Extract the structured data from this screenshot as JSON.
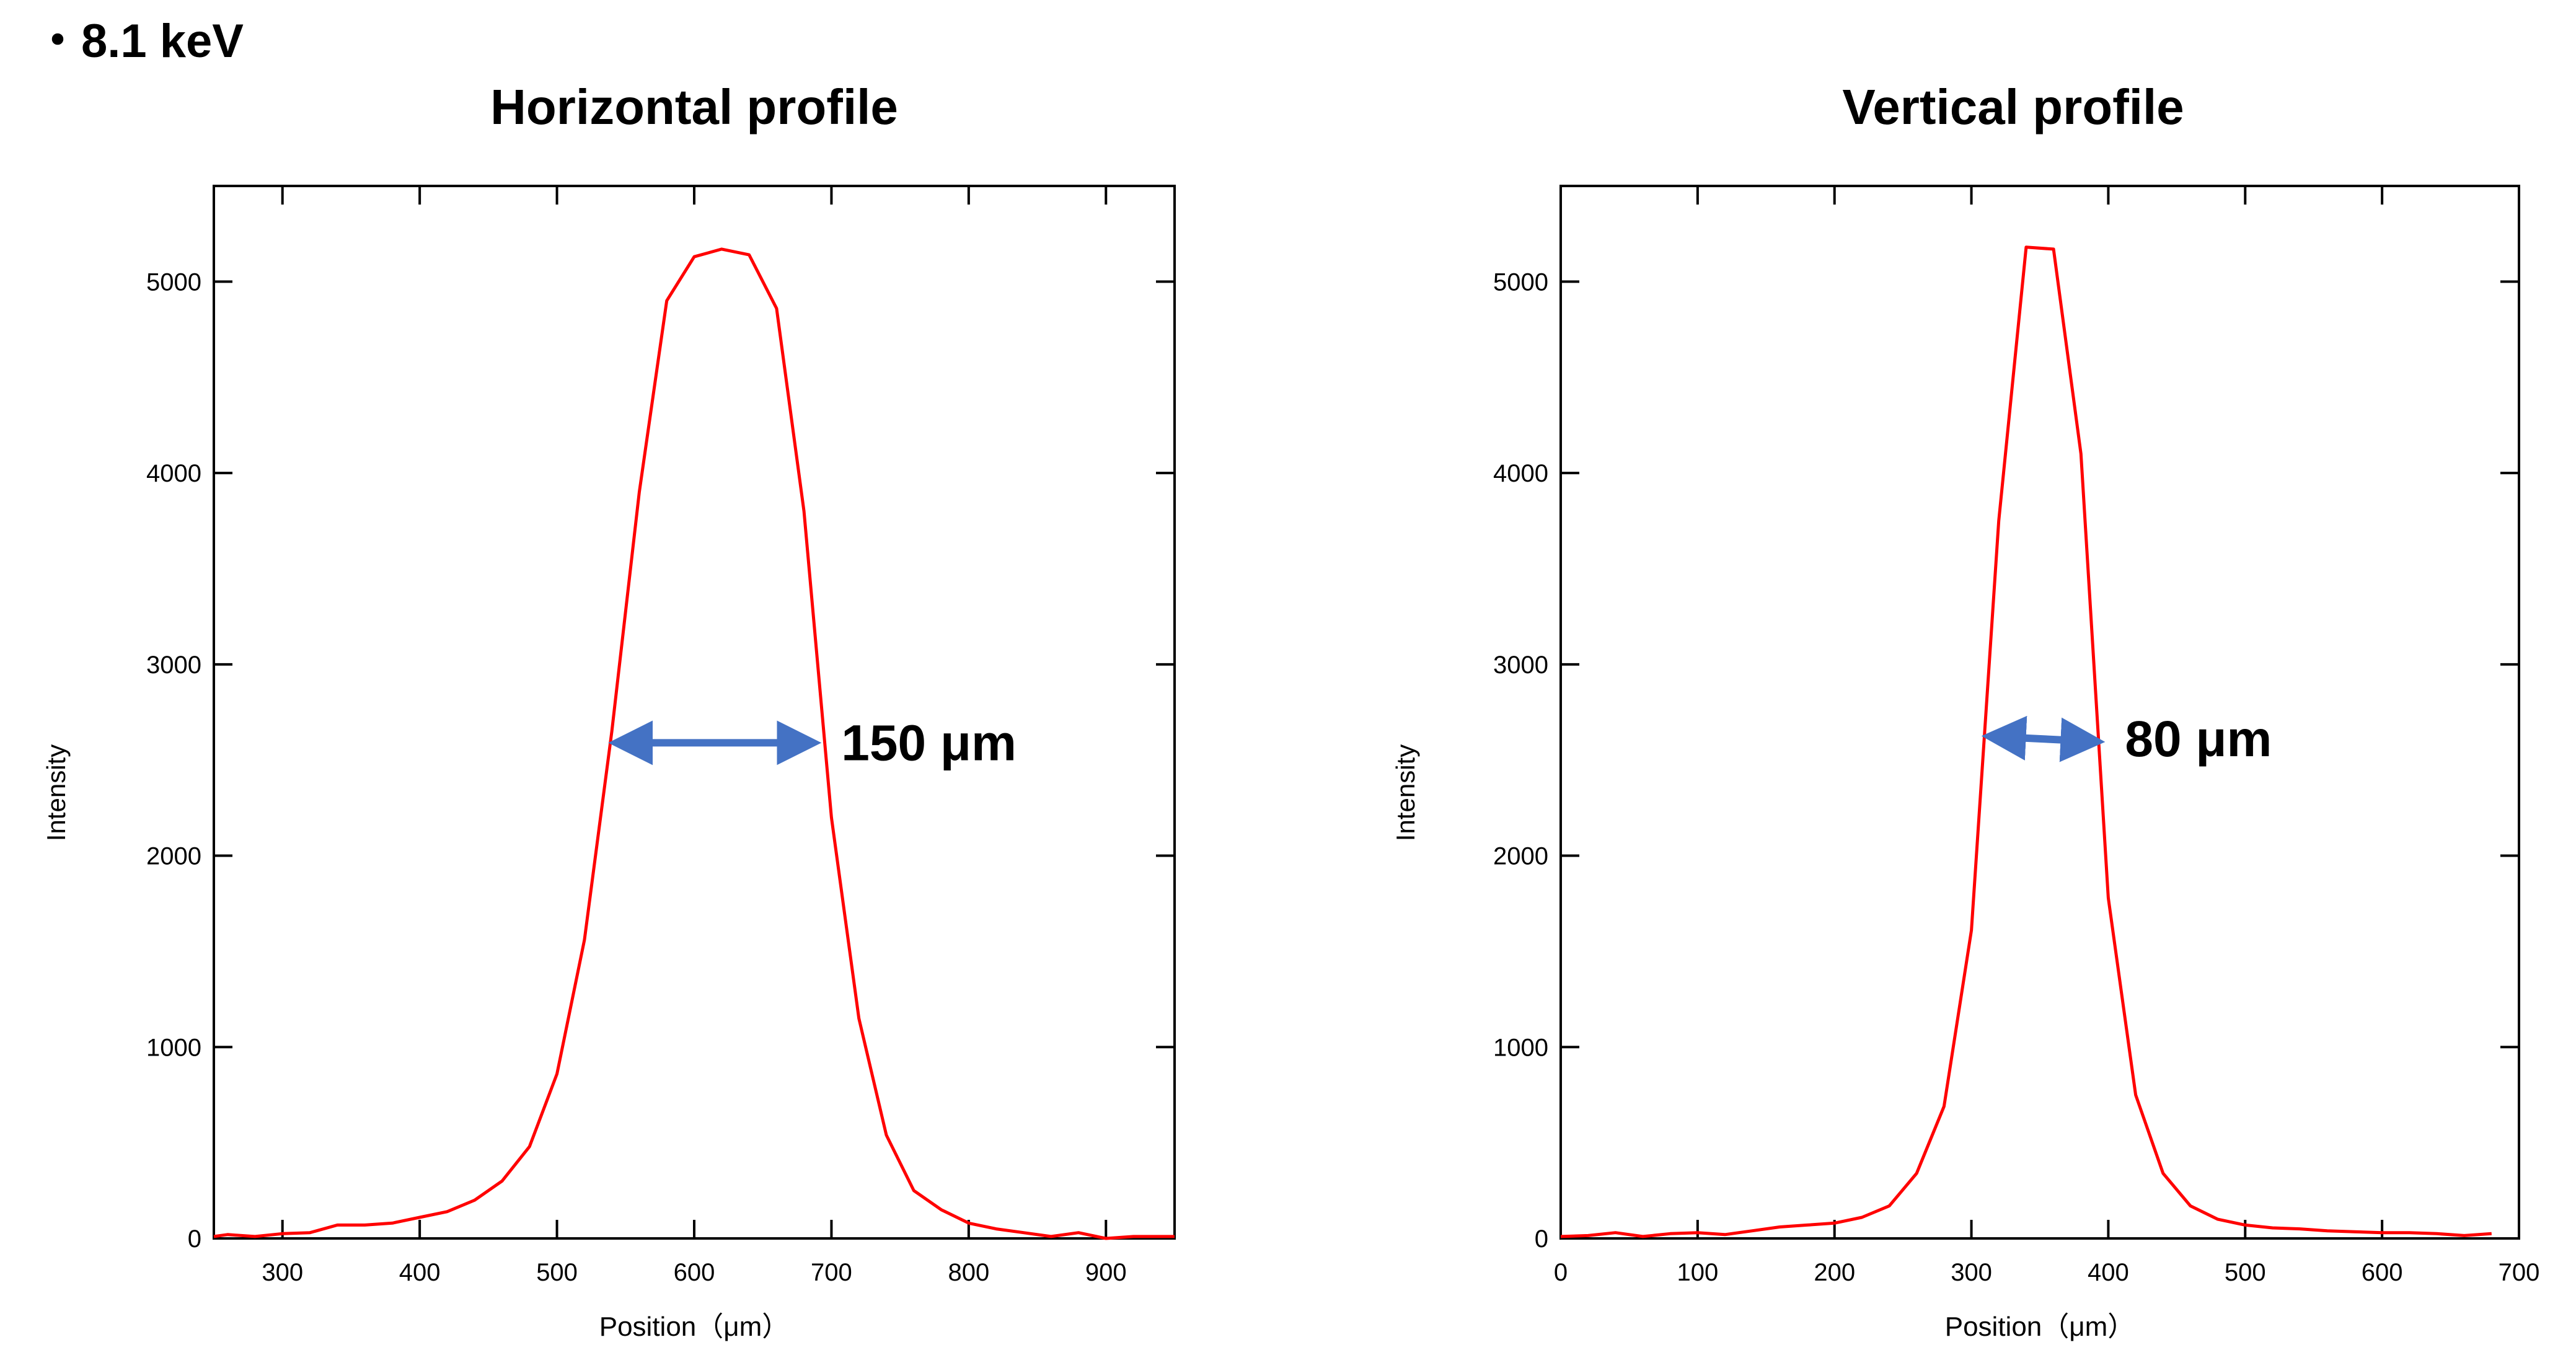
{
  "header": {
    "energy_label": "・8.1 keV"
  },
  "chart_data": [
    {
      "type": "line",
      "title": "Horizontal profile",
      "xlabel": "Position（μm）",
      "ylabel": "Intensity",
      "xlim": [
        250,
        950
      ],
      "ylim": [
        0,
        5500
      ],
      "xticks": [
        300,
        400,
        500,
        600,
        700,
        800,
        900
      ],
      "yticks": [
        0,
        1000,
        2000,
        3000,
        4000,
        5000
      ],
      "grid": false,
      "line_color": "#ff0000",
      "series": [
        {
          "x": [
            250,
            260,
            280,
            300,
            320,
            340,
            360,
            380,
            400,
            420,
            440,
            460,
            480,
            500,
            520,
            540,
            560,
            580,
            600,
            620,
            640,
            660,
            680,
            700,
            720,
            740,
            760,
            780,
            800,
            820,
            840,
            860,
            880,
            900,
            920,
            940,
            950
          ],
          "y": [
            10,
            20,
            10,
            25,
            30,
            70,
            70,
            80,
            110,
            140,
            200,
            300,
            480,
            860,
            1560,
            2650,
            3900,
            4900,
            5130,
            5170,
            5140,
            4860,
            3800,
            2200,
            1150,
            540,
            250,
            150,
            80,
            50,
            30,
            10,
            30,
            0,
            10,
            10,
            10
          ]
        }
      ],
      "annotation": {
        "text": "150 μm",
        "arrow_from": [
          540,
          2590
        ],
        "arrow_to": [
          690,
          2590
        ],
        "arrow_color": "#4472c4"
      }
    },
    {
      "type": "line",
      "title": "Vertical profile",
      "xlabel": "Position（μm）",
      "ylabel": "Intensity",
      "xlim": [
        0,
        700
      ],
      "ylim": [
        0,
        5500
      ],
      "xticks": [
        0,
        100,
        200,
        300,
        400,
        500,
        600,
        700
      ],
      "yticks": [
        0,
        1000,
        2000,
        3000,
        4000,
        5000
      ],
      "grid": false,
      "line_color": "#ff0000",
      "series": [
        {
          "x": [
            0,
            20,
            40,
            60,
            80,
            100,
            120,
            140,
            160,
            180,
            200,
            220,
            240,
            260,
            280,
            300,
            320,
            340,
            360,
            380,
            400,
            420,
            440,
            460,
            480,
            500,
            520,
            540,
            560,
            580,
            600,
            620,
            640,
            660,
            680
          ],
          "y": [
            10,
            15,
            30,
            10,
            25,
            30,
            20,
            40,
            60,
            70,
            80,
            110,
            170,
            340,
            690,
            1610,
            3750,
            5180,
            5170,
            4100,
            1780,
            750,
            340,
            170,
            100,
            70,
            55,
            50,
            40,
            35,
            30,
            30,
            25,
            15,
            25
          ]
        }
      ],
      "annotation": {
        "text": "80 μm",
        "arrow_from": [
          310,
          2620
        ],
        "arrow_to": [
          395,
          2600
        ],
        "arrow_color": "#4472c4"
      }
    }
  ]
}
